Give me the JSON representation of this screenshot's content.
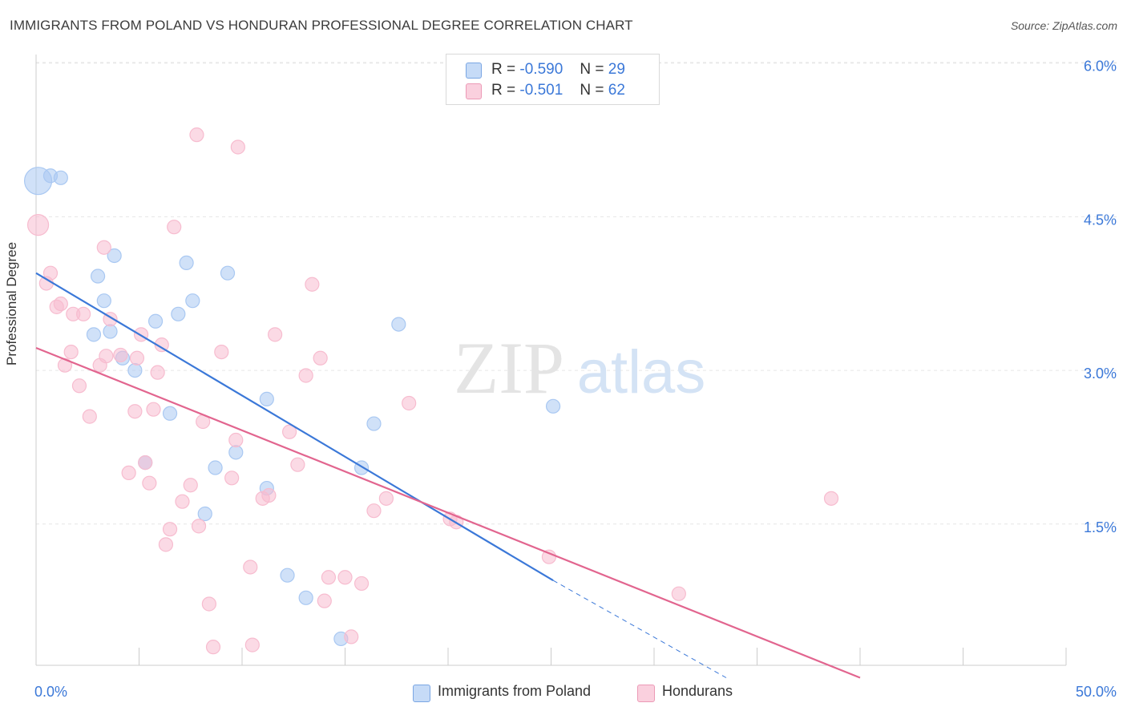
{
  "title": "IMMIGRANTS FROM POLAND VS HONDURAN PROFESSIONAL DEGREE CORRELATION CHART",
  "source": "Source: ZipAtlas.com",
  "watermark": {
    "zip": "ZIP",
    "atlas": "atlas"
  },
  "legend": {
    "rows": [
      {
        "r_label": "R =",
        "r_value": "-0.590",
        "n_label": "N =",
        "n_value": "29",
        "color": "#9fc3f0"
      },
      {
        "r_label": "R =",
        "r_value": "-0.501",
        "n_label": "N =",
        "n_value": "62",
        "color": "#f5b3c8"
      }
    ]
  },
  "bottom_legend": [
    {
      "label": "Immigrants from Poland",
      "color": "#9fc3f0"
    },
    {
      "label": "Hondurans",
      "color": "#f5b3c8"
    }
  ],
  "chart_data": {
    "type": "scatter",
    "title": "IMMIGRANTS FROM POLAND VS HONDURAN PROFESSIONAL DEGREE CORRELATION CHART",
    "xlabel": "",
    "ylabel": "Professional Degree",
    "xlim": [
      0,
      50
    ],
    "ylim": [
      0,
      6.3
    ],
    "x_tick_labels": [
      {
        "value": 0,
        "label": "0.0%"
      },
      {
        "value": 50,
        "label": "50.0%"
      }
    ],
    "y_tick_labels": [
      {
        "value": 1.5,
        "label": "1.5%"
      },
      {
        "value": 3.0,
        "label": "3.0%"
      },
      {
        "value": 4.5,
        "label": "4.5%"
      },
      {
        "value": 6.0,
        "label": "6.0%"
      }
    ],
    "grid": true,
    "series": [
      {
        "name": "Immigrants from Poland",
        "color": "#3b78d8",
        "fill": "#a9c8f2",
        "points": [
          [
            0.1,
            4.85,
            3
          ],
          [
            0.7,
            4.9,
            1
          ],
          [
            1.2,
            4.88,
            1
          ],
          [
            3.0,
            3.92,
            1
          ],
          [
            3.3,
            3.68,
            1
          ],
          [
            2.8,
            3.35,
            1
          ],
          [
            3.8,
            4.12,
            1
          ],
          [
            3.6,
            3.38,
            1
          ],
          [
            4.2,
            3.12,
            1
          ],
          [
            4.8,
            3.0,
            1
          ],
          [
            5.3,
            2.1,
            1
          ],
          [
            5.8,
            3.48,
            1
          ],
          [
            6.5,
            2.58,
            1
          ],
          [
            6.9,
            3.55,
            1
          ],
          [
            7.3,
            4.05,
            1
          ],
          [
            7.6,
            3.68,
            1
          ],
          [
            8.2,
            1.6,
            1
          ],
          [
            8.7,
            2.05,
            1
          ],
          [
            9.3,
            3.95,
            1
          ],
          [
            9.7,
            2.2,
            1
          ],
          [
            11.2,
            2.72,
            1
          ],
          [
            11.2,
            1.85,
            1
          ],
          [
            12.2,
            1.0,
            1
          ],
          [
            13.1,
            0.78,
            1
          ],
          [
            14.8,
            0.38,
            1
          ],
          [
            16.4,
            2.48,
            1
          ],
          [
            15.8,
            2.05,
            1
          ],
          [
            17.6,
            3.45,
            1
          ],
          [
            25.1,
            2.65,
            1
          ]
        ],
        "trend": {
          "x0": 0,
          "y0": 3.95,
          "x1": 25.1,
          "y1": 0.95,
          "dash_to_x": 33.5,
          "dash_to_y": 0.0
        }
      },
      {
        "name": "Hondurans",
        "color": "#e2658f",
        "fill": "#f7bccf",
        "points": [
          [
            0.1,
            4.42,
            2
          ],
          [
            0.5,
            3.85,
            1
          ],
          [
            0.7,
            3.95,
            1
          ],
          [
            1.0,
            3.62,
            1
          ],
          [
            1.2,
            3.65,
            1
          ],
          [
            1.4,
            3.05,
            1
          ],
          [
            1.7,
            3.18,
            1
          ],
          [
            1.8,
            3.55,
            1
          ],
          [
            2.1,
            2.85,
            1
          ],
          [
            2.3,
            3.55,
            1
          ],
          [
            2.6,
            2.55,
            1
          ],
          [
            3.1,
            3.05,
            1
          ],
          [
            3.3,
            4.2,
            1
          ],
          [
            3.4,
            3.14,
            1
          ],
          [
            3.6,
            3.5,
            1
          ],
          [
            4.1,
            3.15,
            1
          ],
          [
            4.5,
            2.0,
            1
          ],
          [
            4.8,
            2.6,
            1
          ],
          [
            4.9,
            3.12,
            1
          ],
          [
            5.1,
            3.35,
            1
          ],
          [
            5.3,
            2.1,
            1
          ],
          [
            5.5,
            1.9,
            1
          ],
          [
            5.7,
            2.62,
            1
          ],
          [
            5.9,
            2.98,
            1
          ],
          [
            6.1,
            3.25,
            1
          ],
          [
            6.3,
            1.3,
            1
          ],
          [
            6.5,
            1.45,
            1
          ],
          [
            6.7,
            4.4,
            1
          ],
          [
            7.1,
            1.72,
            1
          ],
          [
            7.5,
            1.88,
            1
          ],
          [
            7.8,
            5.3,
            1
          ],
          [
            7.9,
            1.48,
            1
          ],
          [
            8.1,
            2.5,
            1
          ],
          [
            8.4,
            0.72,
            1
          ],
          [
            8.6,
            0.3,
            1
          ],
          [
            9.0,
            3.18,
            1
          ],
          [
            9.5,
            1.95,
            1
          ],
          [
            9.7,
            2.32,
            1
          ],
          [
            9.8,
            5.18,
            1
          ],
          [
            10.4,
            1.08,
            1
          ],
          [
            10.5,
            0.32,
            1
          ],
          [
            11.0,
            1.75,
            1
          ],
          [
            11.3,
            1.78,
            1
          ],
          [
            11.6,
            3.35,
            1
          ],
          [
            12.3,
            2.4,
            1
          ],
          [
            12.7,
            2.08,
            1
          ],
          [
            13.1,
            2.95,
            1
          ],
          [
            13.4,
            3.84,
            1
          ],
          [
            13.8,
            3.12,
            1
          ],
          [
            14.0,
            0.75,
            1
          ],
          [
            14.2,
            0.98,
            1
          ],
          [
            15.0,
            0.98,
            1
          ],
          [
            15.3,
            0.4,
            1
          ],
          [
            15.8,
            0.92,
            1
          ],
          [
            16.4,
            1.63,
            1
          ],
          [
            17.0,
            1.75,
            1
          ],
          [
            18.1,
            2.68,
            1
          ],
          [
            20.1,
            1.55,
            1
          ],
          [
            20.4,
            1.52,
            1
          ],
          [
            24.9,
            1.18,
            1
          ],
          [
            31.2,
            0.82,
            1
          ],
          [
            38.6,
            1.75,
            1
          ]
        ],
        "trend": {
          "x0": 0,
          "y0": 3.22,
          "x1": 40.0,
          "y1": 0.0
        }
      }
    ]
  }
}
